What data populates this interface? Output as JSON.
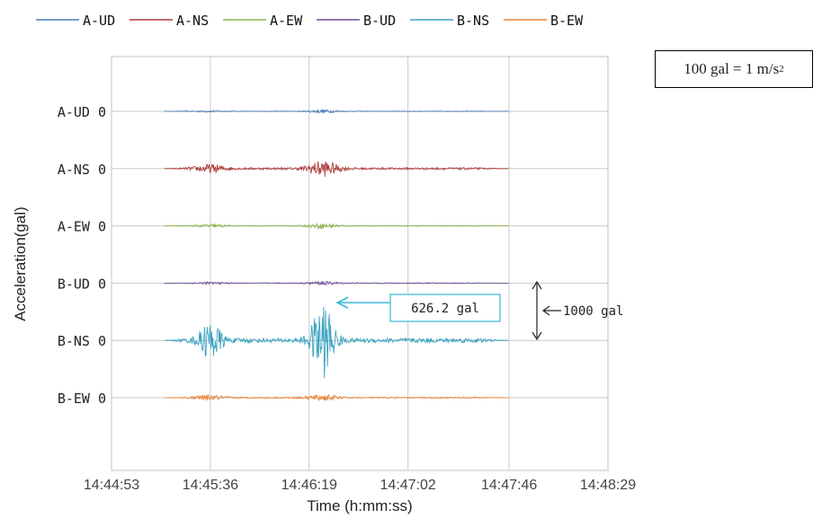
{
  "chart_data": {
    "type": "line",
    "xlabel": "Time (h:mm:ss)",
    "ylabel": "Acceleration(gal)",
    "x_ticks": [
      "14:44:53",
      "14:45:36",
      "14:46:19",
      "14:47:02",
      "14:47:46",
      "14:48:29"
    ],
    "x_range": [
      "14:44:53",
      "14:48:29"
    ],
    "grid": true,
    "legend_position": "top",
    "series": [
      {
        "name": "A-UD",
        "color": "#4a7ab8",
        "row_label": "A-UD 0",
        "baseline": 0,
        "base_amp": 6,
        "peaks": [
          {
            "t": "14:46:25",
            "amp": 25
          },
          {
            "t": "14:45:36",
            "amp": 12
          }
        ]
      },
      {
        "name": "A-NS",
        "color": "#b03a3a",
        "row_label": "A-NS 0",
        "baseline": 0,
        "base_amp": 18,
        "peaks": [
          {
            "t": "14:46:25",
            "amp": 130
          },
          {
            "t": "14:45:36",
            "amp": 65
          }
        ]
      },
      {
        "name": "A-EW",
        "color": "#8cb34a",
        "row_label": "A-EW 0",
        "baseline": 0,
        "base_amp": 8,
        "peaks": [
          {
            "t": "14:46:25",
            "amp": 40
          },
          {
            "t": "14:45:36",
            "amp": 25
          }
        ]
      },
      {
        "name": "B-UD",
        "color": "#6e4d96",
        "row_label": "B-UD 0",
        "baseline": 0,
        "base_amp": 8,
        "peaks": [
          {
            "t": "14:46:25",
            "amp": 25
          },
          {
            "t": "14:45:36",
            "amp": 15
          }
        ]
      },
      {
        "name": "B-NS",
        "color": "#3ba3c0",
        "row_label": "B-NS 0",
        "baseline": 0,
        "base_amp": 40,
        "peaks": [
          {
            "t": "14:46:25",
            "amp": 626.2
          },
          {
            "t": "14:45:36",
            "amp": 300
          }
        ]
      },
      {
        "name": "B-EW",
        "color": "#e9863a",
        "row_label": "B-EW 0",
        "baseline": 0,
        "base_amp": 12,
        "peaks": [
          {
            "t": "14:46:25",
            "amp": 50
          },
          {
            "t": "14:45:36",
            "amp": 40
          }
        ]
      }
    ],
    "signal_range": [
      "14:45:16",
      "14:47:46"
    ],
    "annotations": {
      "peak_label": "626.2 gal",
      "peak_series": "B-NS",
      "scale_label": "1000 gal",
      "scale_value": 1000
    }
  },
  "note": {
    "text": "100 gal = 1 m/s",
    "sup": "2"
  }
}
